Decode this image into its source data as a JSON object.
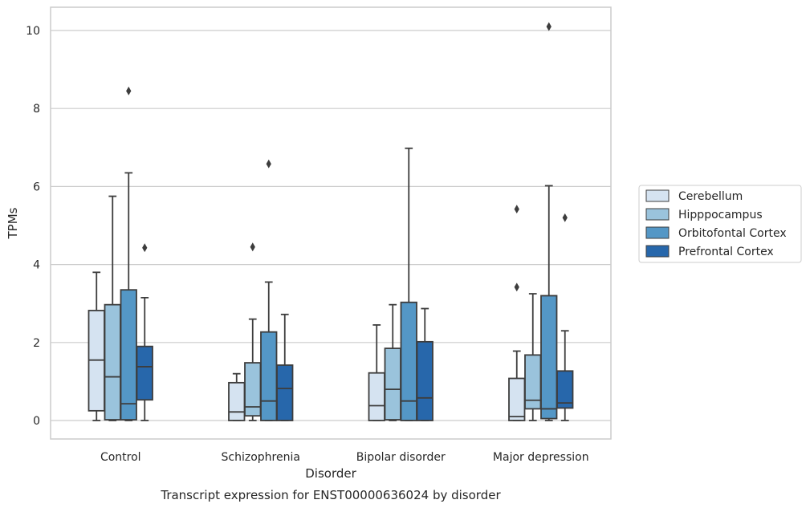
{
  "chart_data": {
    "type": "box",
    "title": "",
    "caption": "Transcript expression for ENST00000636024 by disorder",
    "xlabel": "Disorder",
    "ylabel": "TPMs",
    "ylim": [
      -0.5,
      10.6
    ],
    "yticks": [
      0,
      2,
      4,
      6,
      8,
      10
    ],
    "grid": "horizontal",
    "legend_position": "right",
    "categories": [
      "Control",
      "Schizophrenia",
      "Bipolar disorder",
      "Major depression"
    ],
    "series": [
      {
        "name": "Cerebellum",
        "color": "#d5e3f1",
        "boxes": [
          {
            "whisker_low": 0,
            "q1": 0.25,
            "median": 1.55,
            "q3": 2.82,
            "whisker_high": 3.8,
            "outliers": []
          },
          {
            "whisker_low": 0,
            "q1": 0,
            "median": 0.22,
            "q3": 0.97,
            "whisker_high": 1.2,
            "outliers": []
          },
          {
            "whisker_low": 0,
            "q1": 0,
            "median": 0.38,
            "q3": 1.22,
            "whisker_high": 2.45,
            "outliers": []
          },
          {
            "whisker_low": 0,
            "q1": 0,
            "median": 0.1,
            "q3": 1.08,
            "whisker_high": 1.78,
            "outliers": [
              3.42,
              5.42
            ]
          }
        ]
      },
      {
        "name": "Hipppocampus",
        "color": "#9ac3dc",
        "boxes": [
          {
            "whisker_low": 0,
            "q1": 0.02,
            "median": 1.12,
            "q3": 2.97,
            "whisker_high": 5.75,
            "outliers": []
          },
          {
            "whisker_low": 0,
            "q1": 0.12,
            "median": 0.35,
            "q3": 1.48,
            "whisker_high": 2.6,
            "outliers": [
              4.45
            ]
          },
          {
            "whisker_low": 0,
            "q1": 0.02,
            "median": 0.8,
            "q3": 1.85,
            "whisker_high": 2.97,
            "outliers": []
          },
          {
            "whisker_low": 0,
            "q1": 0.3,
            "median": 0.52,
            "q3": 1.68,
            "whisker_high": 3.25,
            "outliers": []
          }
        ]
      },
      {
        "name": "Orbitofontal Cortex",
        "color": "#5497c6",
        "boxes": [
          {
            "whisker_low": 0,
            "q1": 0.02,
            "median": 0.43,
            "q3": 3.35,
            "whisker_high": 6.35,
            "outliers": [
              8.45
            ]
          },
          {
            "whisker_low": 0,
            "q1": 0,
            "median": 0.5,
            "q3": 2.27,
            "whisker_high": 3.55,
            "outliers": [
              6.58
            ]
          },
          {
            "whisker_low": 0,
            "q1": 0,
            "median": 0.5,
            "q3": 3.03,
            "whisker_high": 6.98,
            "outliers": []
          },
          {
            "whisker_low": 0,
            "q1": 0.05,
            "median": 0.3,
            "q3": 3.2,
            "whisker_high": 6.02,
            "outliers": [
              10.1
            ]
          }
        ]
      },
      {
        "name": "Prefrontal Cortex",
        "color": "#2767ab",
        "boxes": [
          {
            "whisker_low": 0,
            "q1": 0.53,
            "median": 1.38,
            "q3": 1.9,
            "whisker_high": 3.15,
            "outliers": [
              4.43
            ]
          },
          {
            "whisker_low": 0,
            "q1": 0,
            "median": 0.82,
            "q3": 1.42,
            "whisker_high": 2.72,
            "outliers": []
          },
          {
            "whisker_low": 0,
            "q1": 0,
            "median": 0.58,
            "q3": 2.02,
            "whisker_high": 2.87,
            "outliers": []
          },
          {
            "whisker_low": 0,
            "q1": 0.32,
            "median": 0.45,
            "q3": 1.27,
            "whisker_high": 2.3,
            "outliers": [
              5.2
            ]
          }
        ]
      }
    ]
  }
}
